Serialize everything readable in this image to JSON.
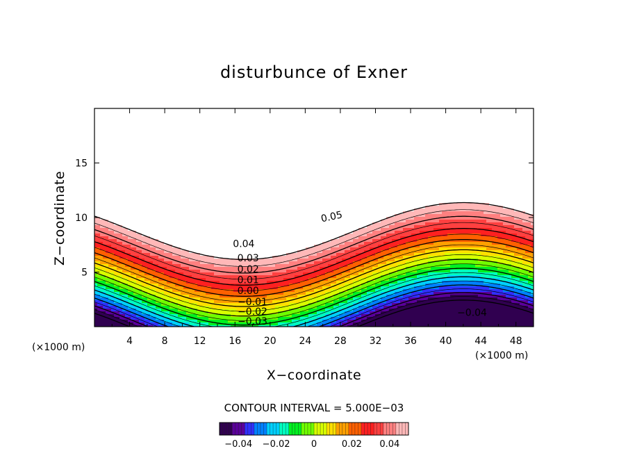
{
  "chart_data": {
    "type": "heatmap",
    "title": "disturbunce of Exner",
    "xlabel": "X−coordinate",
    "ylabel": "Z−coordinate",
    "x_unit": "(×1000 m)",
    "y_unit": "(×1000 m)",
    "xlim": [
      0,
      50
    ],
    "ylim": [
      0,
      20
    ],
    "x_ticks": [
      4,
      8,
      12,
      16,
      20,
      24,
      28,
      32,
      36,
      40,
      44,
      48
    ],
    "y_ticks": [
      5,
      10,
      15
    ],
    "x_tick_labels": [
      "4",
      "8",
      "12",
      "16",
      "20",
      "24",
      "28",
      "32",
      "36",
      "40",
      "44",
      "48"
    ],
    "y_tick_labels": [
      "5",
      "10",
      "15"
    ],
    "contour_interval_text": "CONTOUR INTERVAL = 5.000E−03",
    "contour_interval": 0.005,
    "value_range": [
      -0.05,
      0.05
    ],
    "negative_contours": "dashed",
    "contour_labels": [
      {
        "text": "0.05",
        "x": 27,
        "z": 10.1,
        "angle": -12
      },
      {
        "text": "0.04",
        "x": 17,
        "z": 7.6,
        "angle": 0
      },
      {
        "text": "0.03",
        "x": 17.5,
        "z": 6.3,
        "angle": 0
      },
      {
        "text": "0.02",
        "x": 17.5,
        "z": 5.3,
        "angle": 0
      },
      {
        "text": "0.01",
        "x": 17.5,
        "z": 4.3,
        "angle": 0
      },
      {
        "text": "0.00",
        "x": 17.5,
        "z": 3.3,
        "angle": 0
      },
      {
        "text": "−0.01",
        "x": 18,
        "z": 2.3,
        "angle": 0
      },
      {
        "text": "−0.02",
        "x": 18,
        "z": 1.4,
        "angle": 0
      },
      {
        "text": "−0.03",
        "x": 18,
        "z": 0.5,
        "angle": 0
      },
      {
        "text": "−0.04",
        "x": 43,
        "z": 1.3,
        "angle": 0
      }
    ],
    "colorbar": {
      "ticks": [
        -0.04,
        -0.02,
        0,
        0.02,
        0.04
      ],
      "tick_labels": [
        "−0.04",
        "−0.02",
        "0",
        "0.02",
        "0.04"
      ]
    },
    "colors": {
      "white_region": "#ffffff",
      "palette": [
        "#300050",
        "#5a009a",
        "#3030ff",
        "#0080ff",
        "#00d0ff",
        "#00ffc0",
        "#00f020",
        "#70ff00",
        "#d8ff00",
        "#ffe000",
        "#ffa000",
        "#ff6000",
        "#ff2020",
        "#ff4040",
        "#ff8080",
        "#ffb8b8"
      ]
    }
  }
}
